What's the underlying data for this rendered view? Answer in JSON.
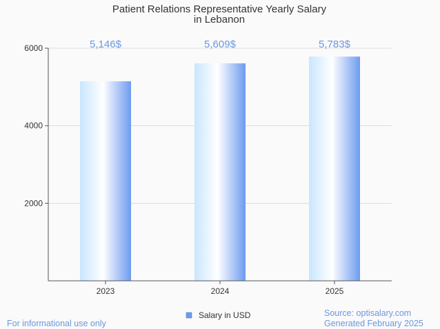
{
  "chart_data": {
    "type": "bar",
    "title": [
      "Patient Relations Representative Yearly Salary",
      "in Lebanon"
    ],
    "categories": [
      "2023",
      "2024",
      "2025"
    ],
    "series": [
      {
        "name": "Salary in USD",
        "values": [
          5146,
          5609,
          5783
        ],
        "labels": [
          "5,146$",
          "5,609$",
          "5,783$"
        ]
      }
    ],
    "ylim": [
      0,
      6000
    ],
    "yticks": [
      2000,
      4000,
      6000
    ],
    "grid": true,
    "legend": "bottom-center"
  },
  "colors": {
    "bar_dark": "#6e9bf0",
    "bar_light": "#c9e6ff",
    "label": "#6b97e0",
    "grid": "#dddddd",
    "axis": "#555555"
  },
  "footer": {
    "left": "For informational use only",
    "source": "Source: optisalary.com",
    "generated": "Generated February 2025"
  }
}
